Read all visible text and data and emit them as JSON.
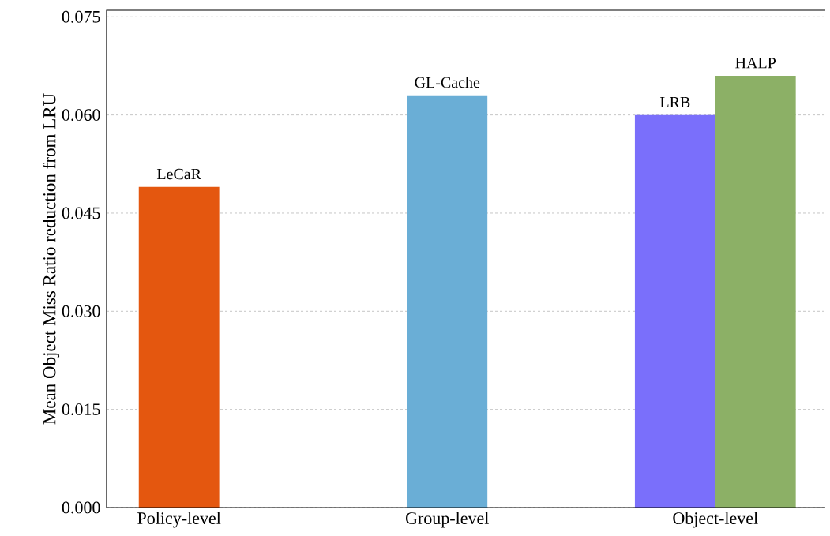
{
  "chart_data": {
    "type": "bar",
    "ylabel": "Mean Object Miss Ratio reduction from LRU",
    "categories": [
      "Policy-level",
      "Group-level",
      "Object-level"
    ],
    "series": [
      {
        "name": "LeCaR",
        "color": "#e4570f",
        "values": [
          0.049,
          null,
          null
        ]
      },
      {
        "name": "GL-Cache",
        "color": "#6aaed6",
        "values": [
          null,
          0.063,
          null
        ]
      },
      {
        "name": "LRB",
        "color": "#7a6ffb",
        "values": [
          null,
          null,
          0.06
        ]
      },
      {
        "name": "HALP",
        "color": "#8cb066",
        "values": [
          null,
          null,
          0.066
        ]
      }
    ],
    "ylim": [
      0,
      0.076
    ],
    "yticks": [
      {
        "value": 0,
        "label": "0.000"
      },
      {
        "value": 0.015,
        "label": "0.015"
      },
      {
        "value": 0.03,
        "label": "0.030"
      },
      {
        "value": 0.045,
        "label": "0.045"
      },
      {
        "value": 0.06,
        "label": "0.060"
      },
      {
        "value": 0.075,
        "label": "0.075"
      }
    ],
    "grid": "y"
  }
}
